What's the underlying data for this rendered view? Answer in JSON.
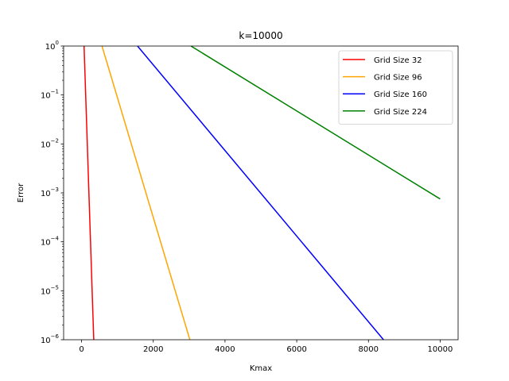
{
  "chart_data": {
    "type": "line",
    "title": "k=10000",
    "xlabel": "Kmax",
    "ylabel": "Error",
    "xlim": [
      -500,
      10500
    ],
    "ylim": [
      1e-06,
      1
    ],
    "yscale": "log",
    "grid": false,
    "legend_position": "top-right",
    "x_ticks": [
      0,
      2000,
      4000,
      6000,
      8000,
      10000
    ],
    "x_tick_labels": [
      "0",
      "2000",
      "4000",
      "6000",
      "8000",
      "10000"
    ],
    "y_ticks": [
      1e-06,
      1e-05,
      0.0001,
      0.001,
      0.01,
      0.1,
      1
    ],
    "y_tick_bases": [
      "10",
      "10",
      "10",
      "10",
      "10",
      "10",
      "10"
    ],
    "y_tick_exponents": [
      "−6",
      "−5",
      "−4",
      "−3",
      "−2",
      "−1",
      "0"
    ],
    "series": [
      {
        "name": "Grid Size 32",
        "color": "#ff0000",
        "x": [
          70,
          340
        ],
        "y": [
          1,
          1e-06
        ]
      },
      {
        "name": "Grid Size 96",
        "color": "#ffa500",
        "x": [
          570,
          3020
        ],
        "y": [
          1,
          1e-06
        ]
      },
      {
        "name": "Grid Size 160",
        "color": "#0000ff",
        "x": [
          1560,
          8420
        ],
        "y": [
          1,
          1e-06
        ]
      },
      {
        "name": "Grid Size 224",
        "color": "#008000",
        "x": [
          3050,
          10000
        ],
        "y": [
          1,
          0.00075
        ]
      }
    ]
  }
}
